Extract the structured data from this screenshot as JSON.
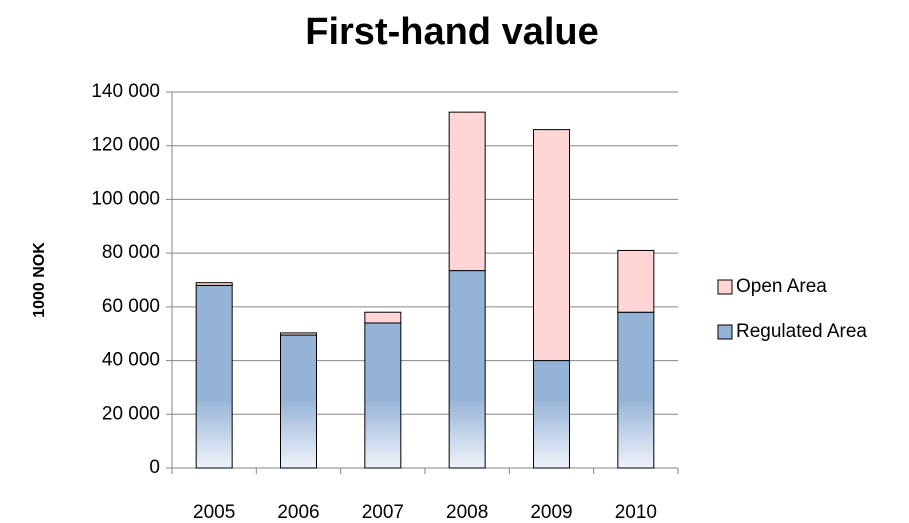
{
  "chart_data": {
    "type": "stacked_bar",
    "title": "First-hand value",
    "y_label": "1000 NOK",
    "categories": [
      "2005",
      "2006",
      "2007",
      "2008",
      "2009",
      "2010"
    ],
    "series": [
      {
        "name": "Regulated Area",
        "color": "#95b3d7",
        "values": [
          68000,
          49500,
          54000,
          73500,
          40000,
          58000
        ]
      },
      {
        "name": "Open Area",
        "color": "#ffd5d5",
        "values": [
          1000,
          800,
          4000,
          59000,
          86000,
          23000
        ]
      }
    ],
    "ylim": [
      0,
      140000
    ],
    "yticks": [
      0,
      {
        "value": 20000,
        "label": "20 000"
      },
      {
        "value": 40000,
        "label": "40 000"
      },
      {
        "value": 60000,
        "label": "60 000"
      },
      {
        "value": 80000,
        "label": "80 000"
      },
      {
        "value": 100000,
        "label": "100 000"
      },
      {
        "value": 120000,
        "label": "120 000"
      },
      {
        "value": 140000,
        "label": "140 000"
      }
    ],
    "grid": true,
    "legend": "right"
  }
}
